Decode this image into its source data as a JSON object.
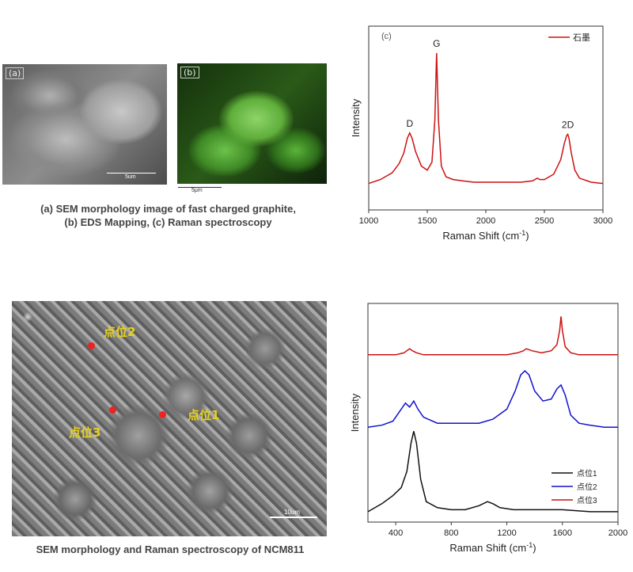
{
  "top": {
    "panel_a_tag": "(a)",
    "panel_b_tag": "(b)",
    "panel_a_scale": "5um",
    "panel_b_scale": "5μm",
    "caption_line1": "(a) SEM morphology image of fast charged graphite,",
    "caption_line2": "(b) EDS Mapping, (c) Raman spectroscopy"
  },
  "bottom": {
    "scale_label": "10um",
    "points": [
      "点位1",
      "点位2",
      "点位3"
    ],
    "caption": "SEM morphology and Raman spectroscopy of NCM811"
  },
  "colors": {
    "red": "#cc1111",
    "blue": "#1111cc",
    "black": "#111111",
    "marker": "#ee2222",
    "point_label": "#e6d21a"
  },
  "chart_data": [
    {
      "type": "line",
      "panel_tag": "(c)",
      "xlabel": "Raman Shift (cm",
      "xlabel_sup": "-1",
      "xlabel_end": ")",
      "ylabel": "Intensity",
      "xlim": [
        1000,
        3000
      ],
      "xticks": [
        "1000",
        "1500",
        "2000",
        "2500",
        "3000"
      ],
      "annotations": [
        {
          "text": "D",
          "x": 1350
        },
        {
          "text": "G",
          "x": 1580
        },
        {
          "text": "2D",
          "x": 2700
        }
      ],
      "series": [
        {
          "name": "石墨",
          "color": "#cc1111",
          "x": [
            1000,
            1100,
            1200,
            1260,
            1300,
            1330,
            1350,
            1370,
            1400,
            1450,
            1500,
            1540,
            1565,
            1580,
            1595,
            1620,
            1660,
            1720,
            1800,
            1900,
            2000,
            2100,
            2200,
            2300,
            2400,
            2440,
            2460,
            2500,
            2580,
            2640,
            2670,
            2690,
            2700,
            2710,
            2730,
            2760,
            2800,
            2900,
            3000
          ],
          "y": [
            0.02,
            0.05,
            0.1,
            0.17,
            0.25,
            0.36,
            0.4,
            0.36,
            0.26,
            0.15,
            0.12,
            0.18,
            0.5,
            1.0,
            0.5,
            0.15,
            0.07,
            0.05,
            0.04,
            0.03,
            0.03,
            0.03,
            0.03,
            0.03,
            0.04,
            0.06,
            0.05,
            0.05,
            0.09,
            0.2,
            0.32,
            0.38,
            0.39,
            0.36,
            0.25,
            0.12,
            0.06,
            0.03,
            0.02
          ]
        }
      ]
    },
    {
      "type": "line",
      "xlabel": "Raman Shift (cm",
      "xlabel_sup": "-1",
      "xlabel_end": ")",
      "ylabel": "Intensity",
      "xlim": [
        200,
        2000
      ],
      "xticks": [
        "400",
        "800",
        "1200",
        "1600",
        "2000"
      ],
      "series": [
        {
          "name": "点位1",
          "color": "#111111",
          "x": [
            200,
            300,
            380,
            440,
            480,
            510,
            530,
            550,
            580,
            620,
            700,
            800,
            900,
            1000,
            1060,
            1100,
            1150,
            1250,
            1400,
            1600,
            1800,
            2000
          ],
          "y": [
            0.02,
            0.06,
            0.1,
            0.14,
            0.22,
            0.36,
            0.42,
            0.36,
            0.18,
            0.07,
            0.04,
            0.03,
            0.03,
            0.05,
            0.07,
            0.06,
            0.04,
            0.03,
            0.03,
            0.03,
            0.02,
            0.02
          ]
        },
        {
          "name": "点位2",
          "color": "#1111cc",
          "x": [
            200,
            300,
            380,
            440,
            470,
            500,
            530,
            560,
            600,
            700,
            800,
            900,
            1000,
            1100,
            1200,
            1260,
            1300,
            1330,
            1360,
            1400,
            1460,
            1520,
            1560,
            1590,
            1620,
            1660,
            1720,
            1800,
            1900,
            2000
          ],
          "y": [
            0.44,
            0.45,
            0.47,
            0.53,
            0.56,
            0.54,
            0.57,
            0.53,
            0.49,
            0.46,
            0.46,
            0.46,
            0.46,
            0.48,
            0.53,
            0.62,
            0.7,
            0.72,
            0.7,
            0.62,
            0.57,
            0.58,
            0.63,
            0.65,
            0.6,
            0.5,
            0.46,
            0.45,
            0.44,
            0.44
          ]
        },
        {
          "name": "点位3",
          "color": "#cc1111",
          "x": [
            200,
            300,
            400,
            460,
            500,
            520,
            550,
            600,
            700,
            800,
            900,
            1000,
            1100,
            1200,
            1280,
            1320,
            1340,
            1380,
            1450,
            1520,
            1560,
            1580,
            1590,
            1600,
            1620,
            1660,
            1720,
            1800,
            1900,
            2000
          ],
          "y": [
            0.8,
            0.8,
            0.8,
            0.81,
            0.83,
            0.82,
            0.81,
            0.8,
            0.8,
            0.8,
            0.8,
            0.8,
            0.8,
            0.8,
            0.81,
            0.82,
            0.83,
            0.82,
            0.81,
            0.82,
            0.85,
            0.92,
            0.99,
            0.92,
            0.84,
            0.81,
            0.8,
            0.8,
            0.8,
            0.8
          ]
        }
      ]
    }
  ]
}
